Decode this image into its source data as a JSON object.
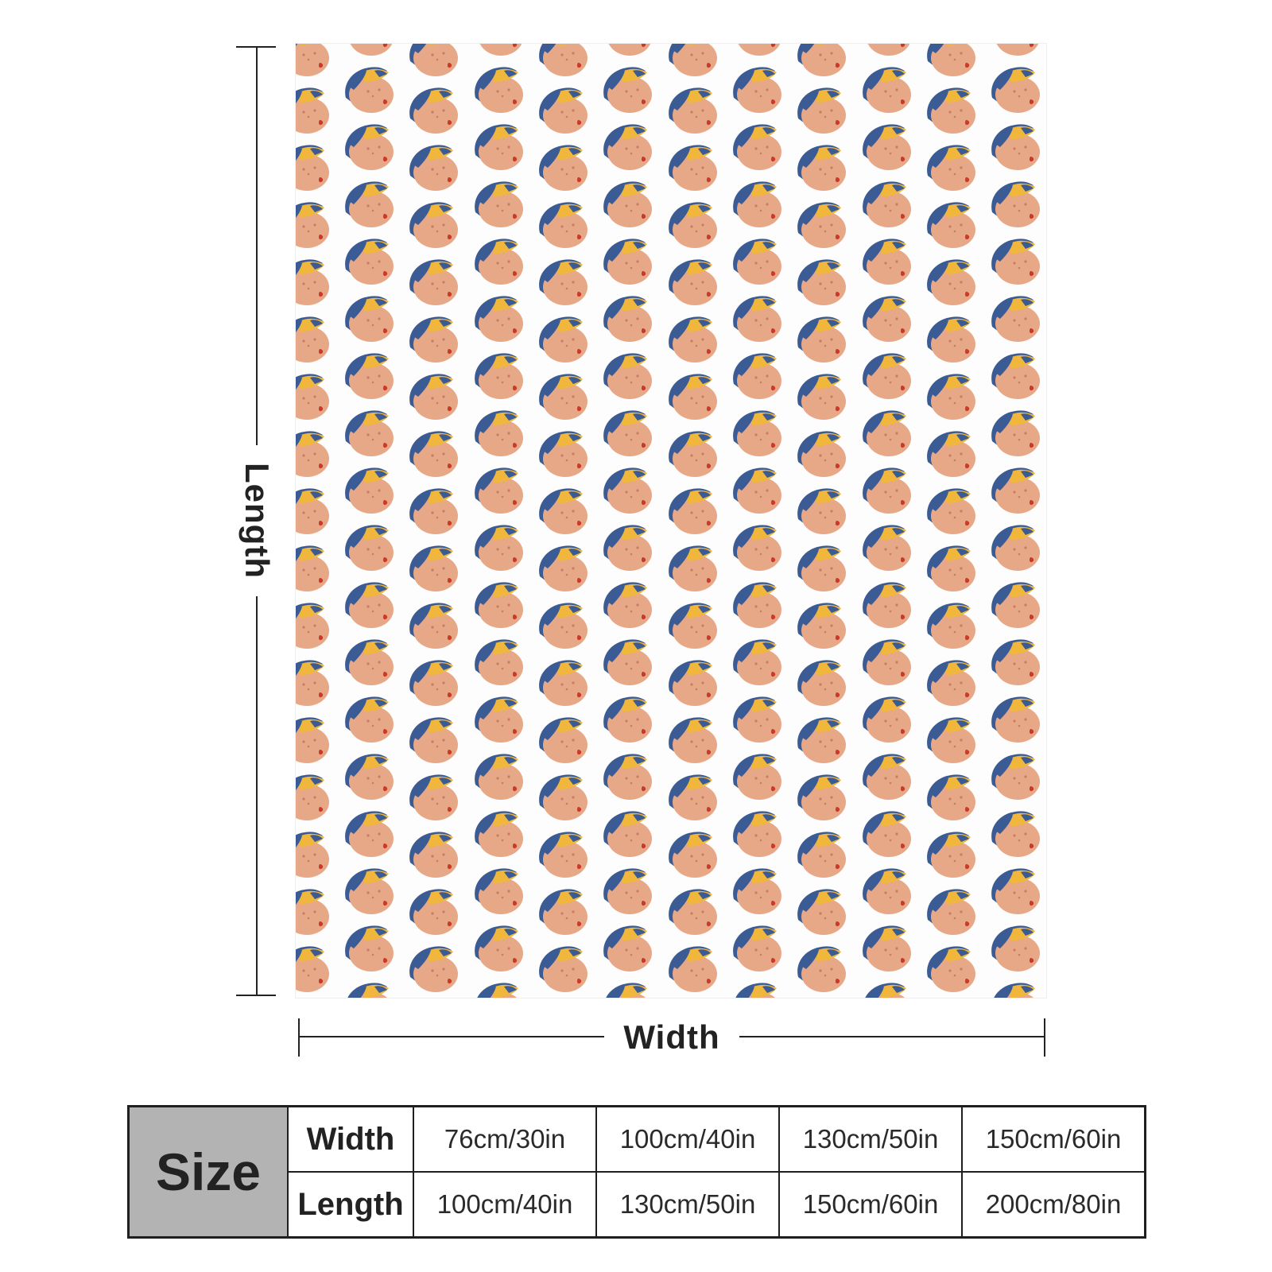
{
  "dimensions": {
    "length_label": "Length",
    "width_label": "Width"
  },
  "blanket": {
    "pattern_icon": "boy-head-with-cap-icon",
    "colors": {
      "background": "#fdfdfd",
      "face": "#e7a888",
      "cap_blue": "#3b5b95",
      "cap_yellow": "#f1b73c",
      "mouth": "#c93a2a",
      "freckles": "#c97c63"
    }
  },
  "size_table": {
    "header": "Size",
    "rows": [
      {
        "label": "Width",
        "values": [
          "76cm/30in",
          "100cm/40in",
          "130cm/50in",
          "150cm/60in"
        ]
      },
      {
        "label": "Length",
        "values": [
          "100cm/40in",
          "130cm/50in",
          "150cm/60in",
          "200cm/80in"
        ]
      }
    ],
    "colors": {
      "header_bg": "#b3b3b3",
      "border": "#1f1f1f"
    }
  }
}
